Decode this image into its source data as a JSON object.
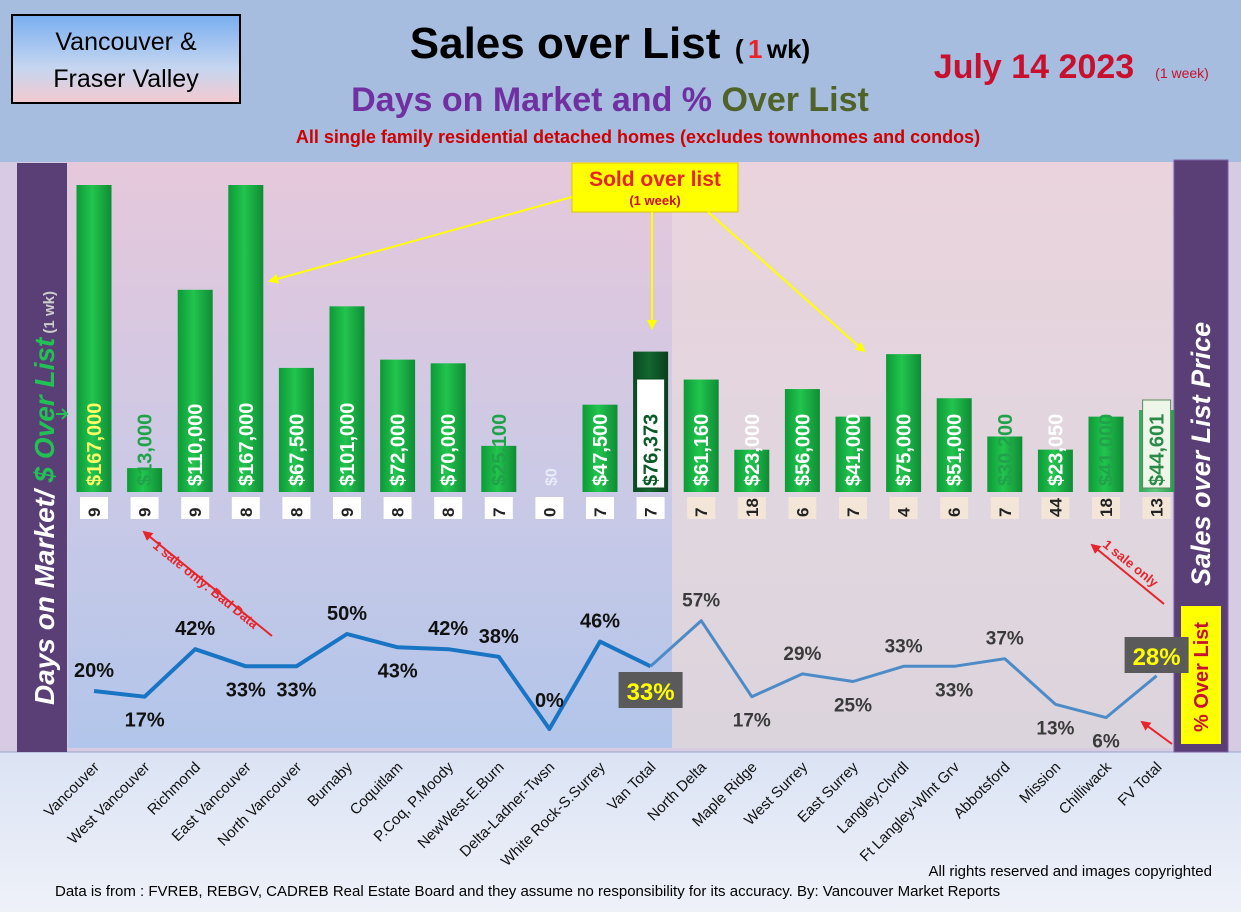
{
  "header": {
    "region_box": [
      "Vancouver &",
      "Fraser Valley"
    ],
    "title_main": "Sales over List",
    "title_paren_open": "(",
    "title_paren_num": "1",
    "title_paren_rest": " wk)",
    "date_text": "July 14  2023",
    "date_note": "(1 week)",
    "subtitle_part1": "Days on Market and % ",
    "subtitle_part2": "Over List",
    "subtitle2": "All single family residential detached homes (excludes townhomes and condos)"
  },
  "left_axis": {
    "part1": "Days on Market/ ",
    "part2": "$ Over List",
    "part3": " (1 wk)"
  },
  "right_axis": {
    "label": "Sales over List Price"
  },
  "right_axis_pct": {
    "label": "% Over List"
  },
  "callouts": {
    "sold_over_list": "Sold over list",
    "sold_over_list_sub": "(1 week)",
    "bad_data": "1 sale only: Bad Data",
    "one_sale": "1 sale only"
  },
  "footer": {
    "rights": "All rights reserved and  images copyrighted",
    "source": "Data is from : FVREB, REBGV, CADREB Real Estate Board and they assume no responsibility for its accuracy. By: Vancouver Market Reports"
  },
  "colors": {
    "bar_green": "#1ec04a",
    "van_total_bar": "#0e5c2a",
    "fv_total_bar": "#8fc89a",
    "line_blue": "#1a74c4",
    "header_bg": "#a6bde0",
    "title_red": "#c8102e",
    "subtitle_purple": "#7030a0",
    "subtitle_green": "#4f6228",
    "panel_purple": "#5a3f77",
    "callout_yellow": "#ffff00"
  },
  "chart_data": {
    "type": "bar",
    "categories": [
      "Vancouver",
      "West Vancouver",
      "Richmond",
      "East Vancouver",
      "North Vancouver",
      "Burnaby",
      "Coquitlam",
      "P.Coq, P.Moody",
      "NewWest-E.Burn",
      "Delta-Ladner-Twsn",
      "White Rock-S.Surrey",
      "Van Total",
      "North Delta",
      "Maple Ridge",
      "West Surrey",
      "East Surrey",
      "Langley,Clvrdl",
      "Ft Langley-Wlnt Grv",
      "Abbotsford",
      "Mission",
      "Chilliwack",
      "FV Total"
    ],
    "ylim": [
      0,
      167000
    ],
    "series": [
      {
        "values": [
          167000,
          13000,
          110000,
          167000,
          67500,
          101000,
          72000,
          70000,
          25100,
          0,
          47500,
          76373,
          61160,
          23000,
          56000,
          41000,
          75000,
          51000,
          30200,
          23050,
          41000,
          44601
        ],
        "labels": [
          "$167,000",
          "$13,000",
          "$110,000",
          "$167,000",
          "$67,500",
          "$101,000",
          "$72,000",
          "$70,000",
          "$25,100",
          "$0",
          "$47,500",
          "$76,373",
          "$61,160",
          "$23,000",
          "$56,000",
          "$41,000",
          "$75,000",
          "$51,000",
          "$30,200",
          "$23,050",
          "$41,000",
          "$44,601"
        ]
      },
      {
        "values": [
          9,
          9,
          9,
          8,
          8,
          9,
          8,
          8,
          7,
          0,
          7,
          7,
          7,
          18,
          6,
          7,
          4,
          6,
          7,
          44,
          18,
          13
        ]
      },
      {
        "values": [
          20,
          17,
          42,
          33,
          33,
          50,
          43,
          42,
          38,
          0,
          46,
          33,
          57,
          17,
          29,
          25,
          33,
          33,
          37,
          13,
          6,
          28
        ],
        "labels": [
          "20%",
          "17%",
          "42%",
          "33%",
          "33%",
          "50%",
          "43%",
          "42%",
          "38%",
          "0%",
          "46%",
          "33%",
          "57%",
          "17%",
          "29%",
          "25%",
          "33%",
          "33%",
          "37%",
          "13%",
          "6%",
          "28%"
        ]
      }
    ]
  }
}
